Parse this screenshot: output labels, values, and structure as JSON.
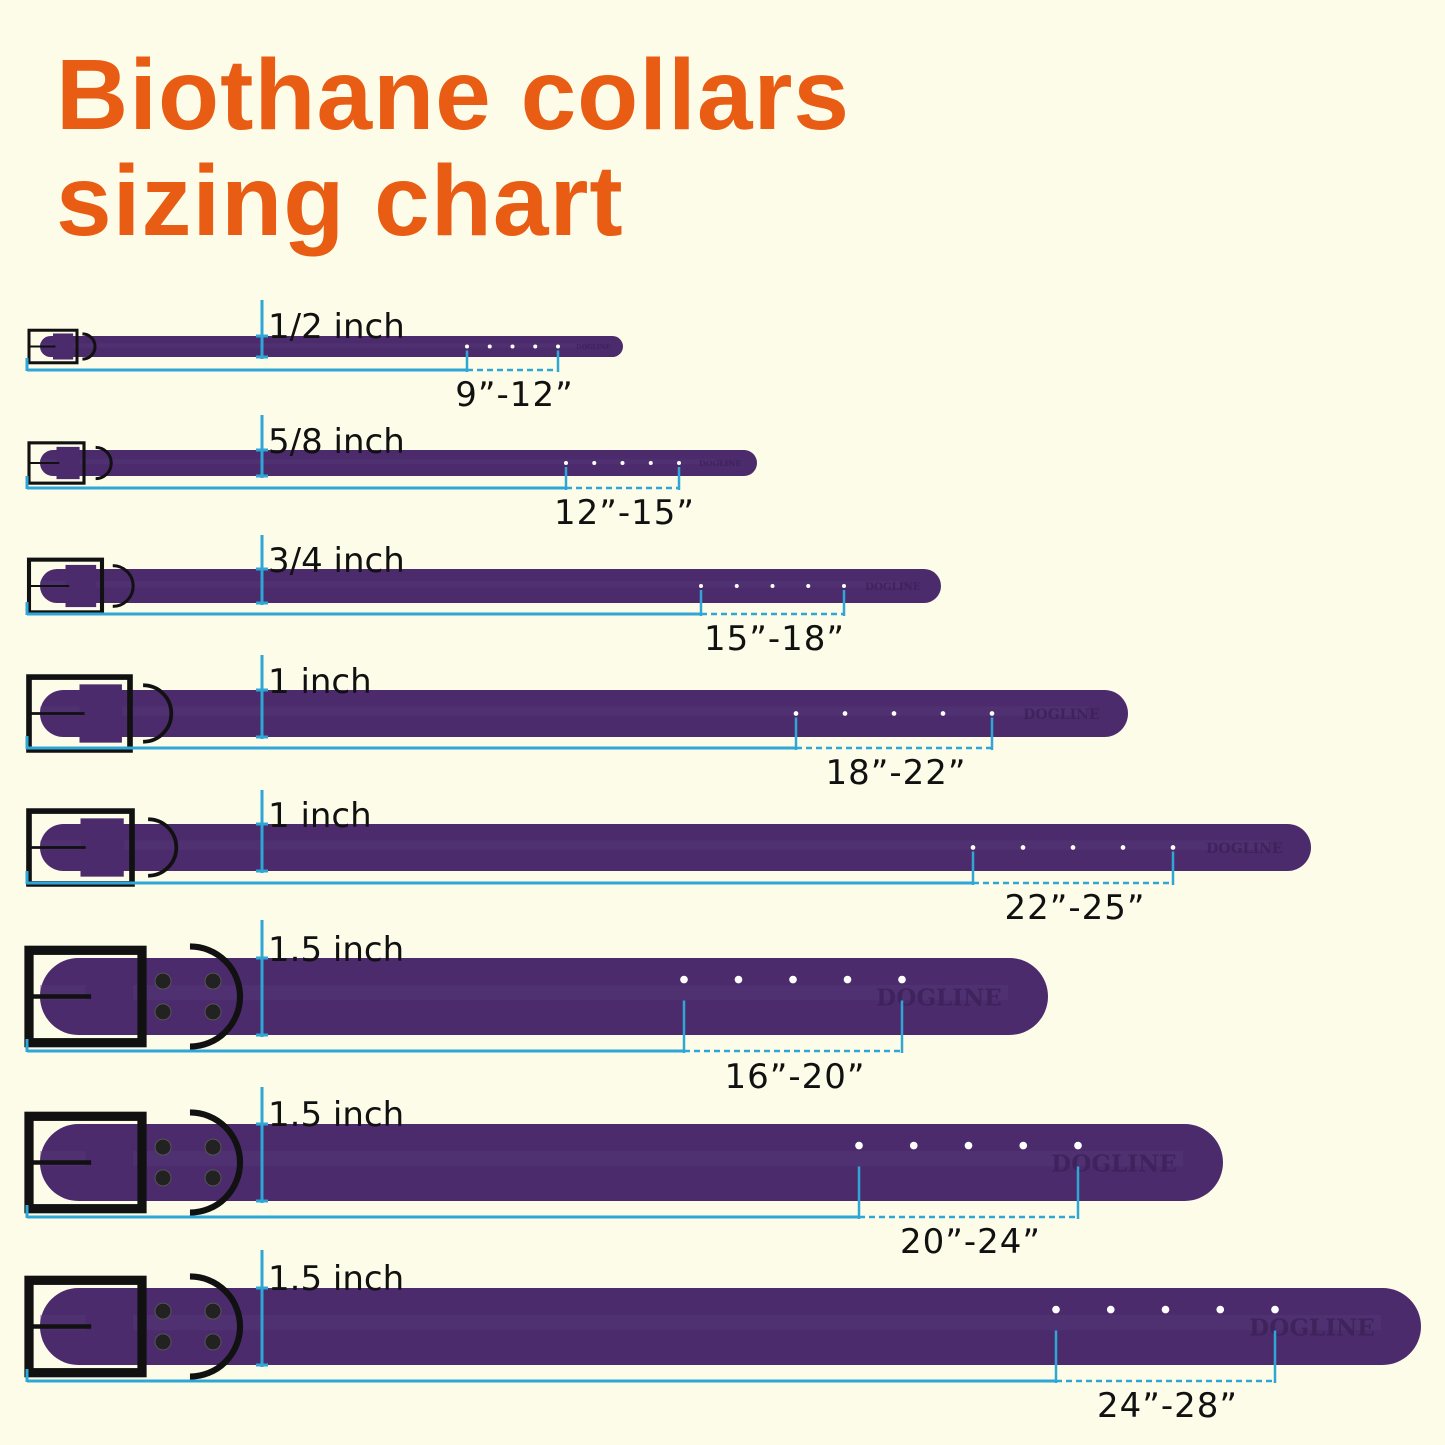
{
  "title": {
    "line1": "Biothane collars",
    "line2": "sizing chart"
  },
  "colors": {
    "title": "#e85c14",
    "strap": "#4b2b6c",
    "hardware": "#111111",
    "measure_line": "#2ea6d6",
    "background": "#fcfce9"
  },
  "brand_logo": "DOGLINE",
  "collars": [
    {
      "width": "1/2 inch",
      "range": "9”-12”"
    },
    {
      "width": "5/8 inch",
      "range": "12”-15”"
    },
    {
      "width": "3/4 inch",
      "range": "15”-18”"
    },
    {
      "width": "1 inch",
      "range": "18”-22”"
    },
    {
      "width": "1 inch",
      "range": "22”-25”"
    },
    {
      "width": "1.5 inch",
      "range": "16”-20”"
    },
    {
      "width": "1.5 inch",
      "range": "20”-24”"
    },
    {
      "width": "1.5 inch",
      "range": "24”-28”"
    }
  ]
}
